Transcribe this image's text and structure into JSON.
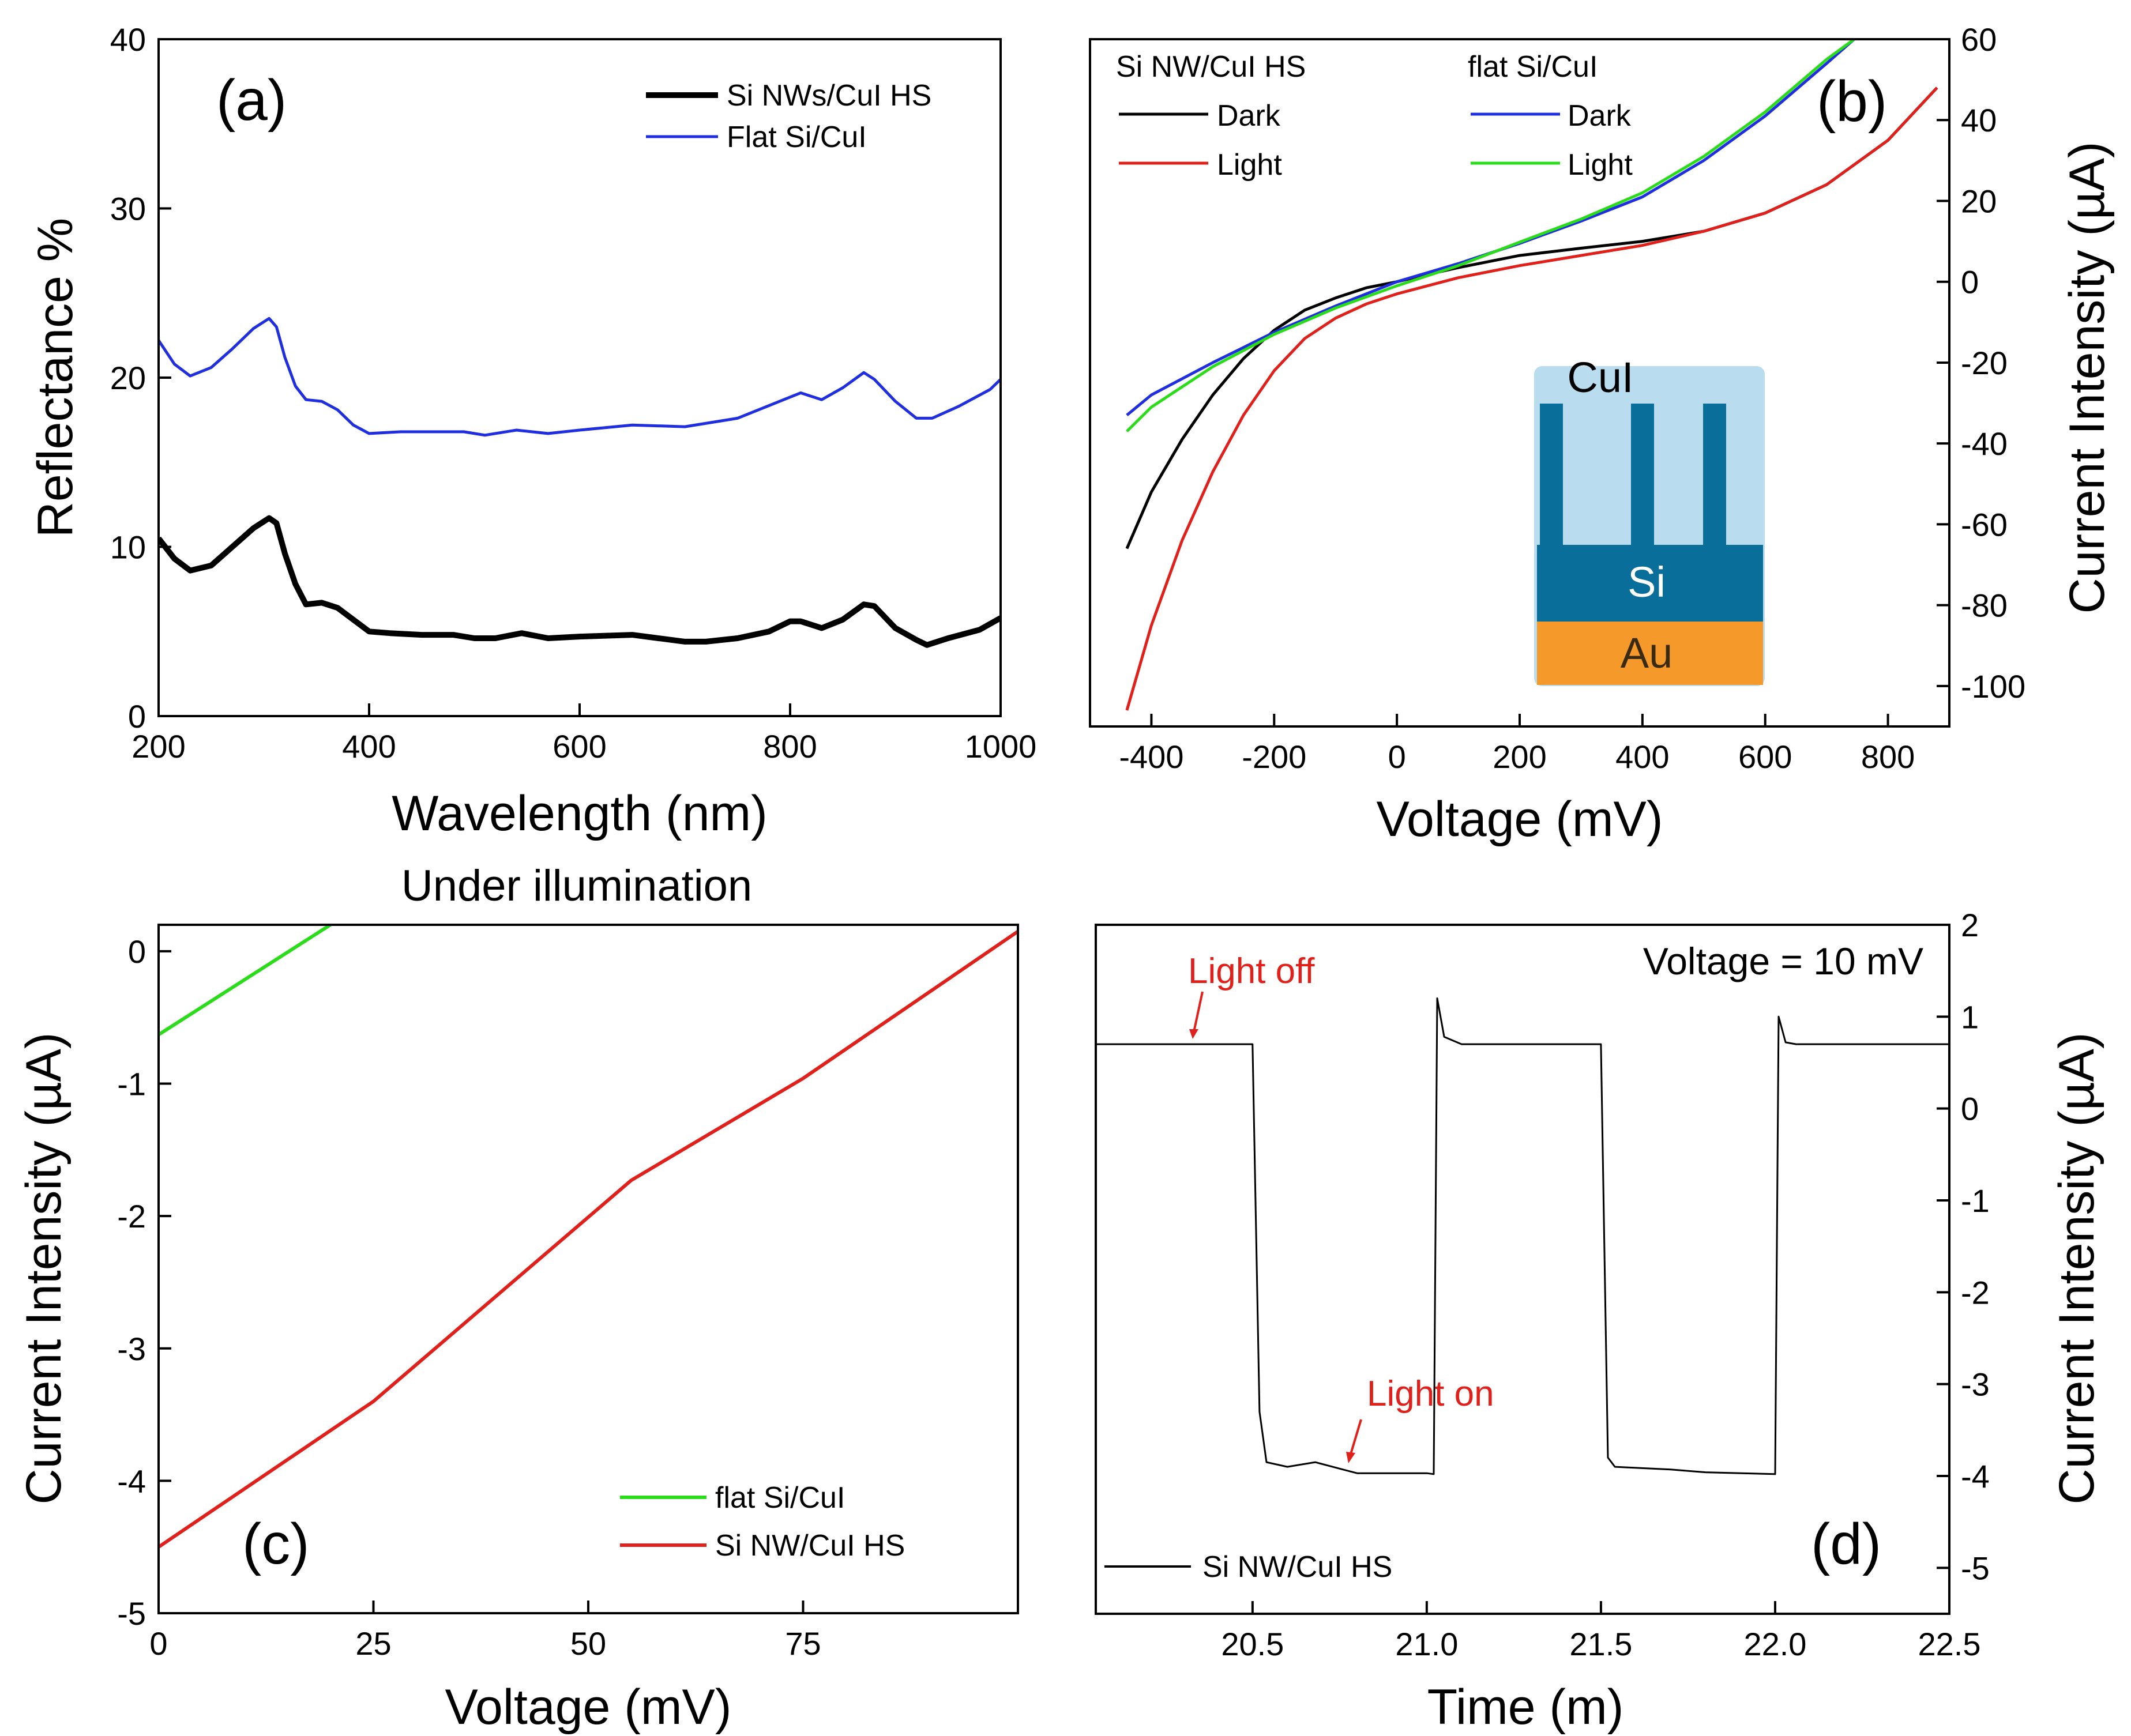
{
  "colors": {
    "black": "#000000",
    "blue": "#1f2fe0",
    "red": "#e0201b",
    "green": "#2bdc1b",
    "cui_box": "#b9dcef",
    "si_box": "#0a6e9a",
    "au_box": "#f59a2a",
    "annotation_red": "#e0201b"
  },
  "chart_data": [
    {
      "panel": "a",
      "type": "line",
      "panel_label": "(a)",
      "xlabel": "Wavelength (nm)",
      "ylabel": "Reflectance %",
      "xlim": [
        200,
        1000
      ],
      "ylim": [
        0,
        40
      ],
      "xticks": [
        200,
        400,
        600,
        800,
        1000
      ],
      "yticks": [
        0,
        10,
        20,
        30,
        40
      ],
      "legend_position": "top-right",
      "series": [
        {
          "name": "Si NWs/CuI HS",
          "color": "#000000",
          "x": [
            200,
            215,
            230,
            250,
            270,
            290,
            305,
            312,
            320,
            330,
            340,
            355,
            370,
            385,
            400,
            420,
            450,
            480,
            500,
            520,
            545,
            570,
            600,
            650,
            700,
            720,
            750,
            780,
            800,
            810,
            830,
            850,
            870,
            880,
            900,
            920,
            930,
            950,
            980,
            1000
          ],
          "y": [
            10.5,
            9.3,
            8.6,
            8.9,
            10.0,
            11.1,
            11.7,
            11.4,
            9.6,
            7.8,
            6.6,
            6.7,
            6.4,
            5.7,
            5.0,
            4.9,
            4.8,
            4.8,
            4.6,
            4.6,
            4.9,
            4.6,
            4.7,
            4.8,
            4.4,
            4.4,
            4.6,
            5.0,
            5.6,
            5.6,
            5.2,
            5.7,
            6.6,
            6.5,
            5.2,
            4.5,
            4.2,
            4.6,
            5.1,
            5.8
          ]
        },
        {
          "name": "Flat Si/CuI",
          "color": "#1f2fe0",
          "x": [
            200,
            215,
            230,
            250,
            270,
            290,
            305,
            312,
            320,
            330,
            340,
            355,
            370,
            385,
            400,
            430,
            460,
            490,
            510,
            540,
            570,
            600,
            650,
            700,
            750,
            790,
            810,
            830,
            850,
            870,
            880,
            900,
            920,
            935,
            960,
            990,
            1000
          ],
          "y": [
            22.2,
            20.8,
            20.1,
            20.6,
            21.7,
            22.9,
            23.5,
            23.0,
            21.2,
            19.5,
            18.7,
            18.6,
            18.1,
            17.2,
            16.7,
            16.8,
            16.8,
            16.8,
            16.6,
            16.9,
            16.7,
            16.9,
            17.2,
            17.1,
            17.6,
            18.6,
            19.1,
            18.7,
            19.4,
            20.3,
            19.9,
            18.6,
            17.6,
            17.6,
            18.3,
            19.3,
            19.9
          ]
        }
      ]
    },
    {
      "panel": "b",
      "type": "line",
      "panel_label": "(b)",
      "xlabel": "Voltage (mV)",
      "ylabel": "Current Intensity (µA)",
      "xlim": [
        -500,
        900
      ],
      "ylim": [
        -110,
        60
      ],
      "xticks": [
        -400,
        -200,
        0,
        200,
        400,
        600,
        800
      ],
      "yticks": [
        -100,
        -80,
        -60,
        -40,
        -20,
        0,
        20,
        40,
        60
      ],
      "legend_groups": [
        {
          "title": "Si NW/CuI HS",
          "entries": [
            {
              "label": "Dark",
              "color": "#000000"
            },
            {
              "label": "Light",
              "color": "#e0201b"
            }
          ]
        },
        {
          "title": "flat Si/CuI",
          "entries": [
            {
              "label": "Dark",
              "color": "#1f2fe0"
            },
            {
              "label": "Light",
              "color": "#2bdc1b"
            }
          ]
        }
      ],
      "inset": {
        "layers": [
          "CuI",
          "Si",
          "Au"
        ]
      },
      "series": [
        {
          "name": "Si NW/CuI HS Dark",
          "color": "#000000",
          "x": [
            -440,
            -400,
            -350,
            -300,
            -250,
            -200,
            -150,
            -100,
            -50,
            0,
            50,
            100,
            200,
            300,
            400,
            500,
            600,
            700,
            800,
            880
          ],
          "y": [
            -66,
            -52,
            -39,
            -28,
            -19,
            -12,
            -7,
            -4,
            -1.5,
            0,
            1.8,
            3.5,
            6.5,
            8.3,
            10,
            12.5,
            17,
            24,
            35,
            48
          ]
        },
        {
          "name": "Si NW/CuI HS Light",
          "color": "#e0201b",
          "x": [
            -440,
            -400,
            -350,
            -300,
            -250,
            -200,
            -150,
            -100,
            -50,
            0,
            100,
            200,
            300,
            400,
            500,
            600,
            700,
            800,
            880
          ],
          "y": [
            -106,
            -85,
            -64,
            -47,
            -33,
            -22,
            -14,
            -9,
            -5.5,
            -3,
            1,
            4,
            6.5,
            9,
            12.5,
            17,
            24,
            35,
            48
          ]
        },
        {
          "name": "flat Si/CuI Dark",
          "color": "#1f2fe0",
          "x": [
            -440,
            -400,
            -300,
            -200,
            -100,
            0,
            100,
            200,
            300,
            400,
            500,
            600,
            700,
            745
          ],
          "y": [
            -33,
            -28,
            -20,
            -12.5,
            -6,
            0,
            4.5,
            9.5,
            15,
            21,
            30,
            41,
            54,
            60
          ]
        },
        {
          "name": "flat Si/CuI Light",
          "color": "#2bdc1b",
          "x": [
            -440,
            -400,
            -300,
            -200,
            -100,
            0,
            100,
            200,
            300,
            400,
            500,
            600,
            700,
            745
          ],
          "y": [
            -37,
            -31,
            -21,
            -13,
            -6.5,
            -1,
            4,
            9.8,
            15.5,
            22,
            31,
            42,
            55,
            60
          ]
        }
      ]
    },
    {
      "panel": "c",
      "type": "line",
      "panel_label": "(c)",
      "title": "Under illumination",
      "xlabel": "Voltage (mV)",
      "ylabel": "Current Intensity (µA)",
      "xlim": [
        0,
        100
      ],
      "ylim": [
        -5,
        0.2
      ],
      "xticks": [
        0,
        25,
        50,
        75
      ],
      "yticks": [
        -5,
        -4,
        -3,
        -2,
        -1,
        0
      ],
      "legend_position": "bottom-right",
      "series": [
        {
          "name": "flat Si/CuI",
          "color": "#2bdc1b",
          "x": [
            0,
            20
          ],
          "y": [
            -0.63,
            0.2
          ]
        },
        {
          "name": "Si NW/CuI HS",
          "color": "#e0201b",
          "x": [
            0,
            25,
            55,
            75,
            100
          ],
          "y": [
            -4.5,
            -3.4,
            -1.73,
            -0.96,
            0.15
          ]
        }
      ]
    },
    {
      "panel": "d",
      "type": "line",
      "panel_label": "(d)",
      "xlabel": "Time (m)",
      "ylabel": "Current Intensity (µA)",
      "annotation_text": "Voltage = 10 mV",
      "xlim": [
        20.05,
        22.5
      ],
      "ylim": [
        -5.5,
        2
      ],
      "xticks": [
        20.5,
        21.0,
        21.5,
        22.0,
        22.5
      ],
      "xtick_labels": [
        "20.5",
        "21.0",
        "21.5",
        "22.0",
        "22.5"
      ],
      "yticks": [
        -5,
        -4,
        -3,
        -2,
        -1,
        0,
        1,
        2
      ],
      "legend_position": "bottom-left",
      "annotations": [
        {
          "text": "Light off",
          "x": 20.29,
          "y": 0.7
        },
        {
          "text": "Light on",
          "x": 20.76,
          "y": -3.97
        }
      ],
      "series": [
        {
          "name": "Si NW/CuI HS",
          "color": "#000000",
          "x": [
            20.05,
            20.5,
            20.52,
            20.54,
            20.6,
            20.68,
            20.75,
            20.8,
            21.0,
            21.02,
            21.03,
            21.05,
            21.1,
            21.3,
            21.5,
            21.52,
            21.54,
            21.7,
            21.8,
            22.0,
            22.01,
            22.03,
            22.06,
            22.2,
            22.5
          ],
          "y": [
            0.7,
            0.7,
            -3.3,
            -3.85,
            -3.9,
            -3.85,
            -3.92,
            -3.97,
            -3.97,
            -3.98,
            1.2,
            0.78,
            0.7,
            0.7,
            0.7,
            -3.8,
            -3.9,
            -3.93,
            -3.96,
            -3.98,
            1.0,
            0.72,
            0.7,
            0.7,
            0.7
          ]
        }
      ]
    }
  ]
}
